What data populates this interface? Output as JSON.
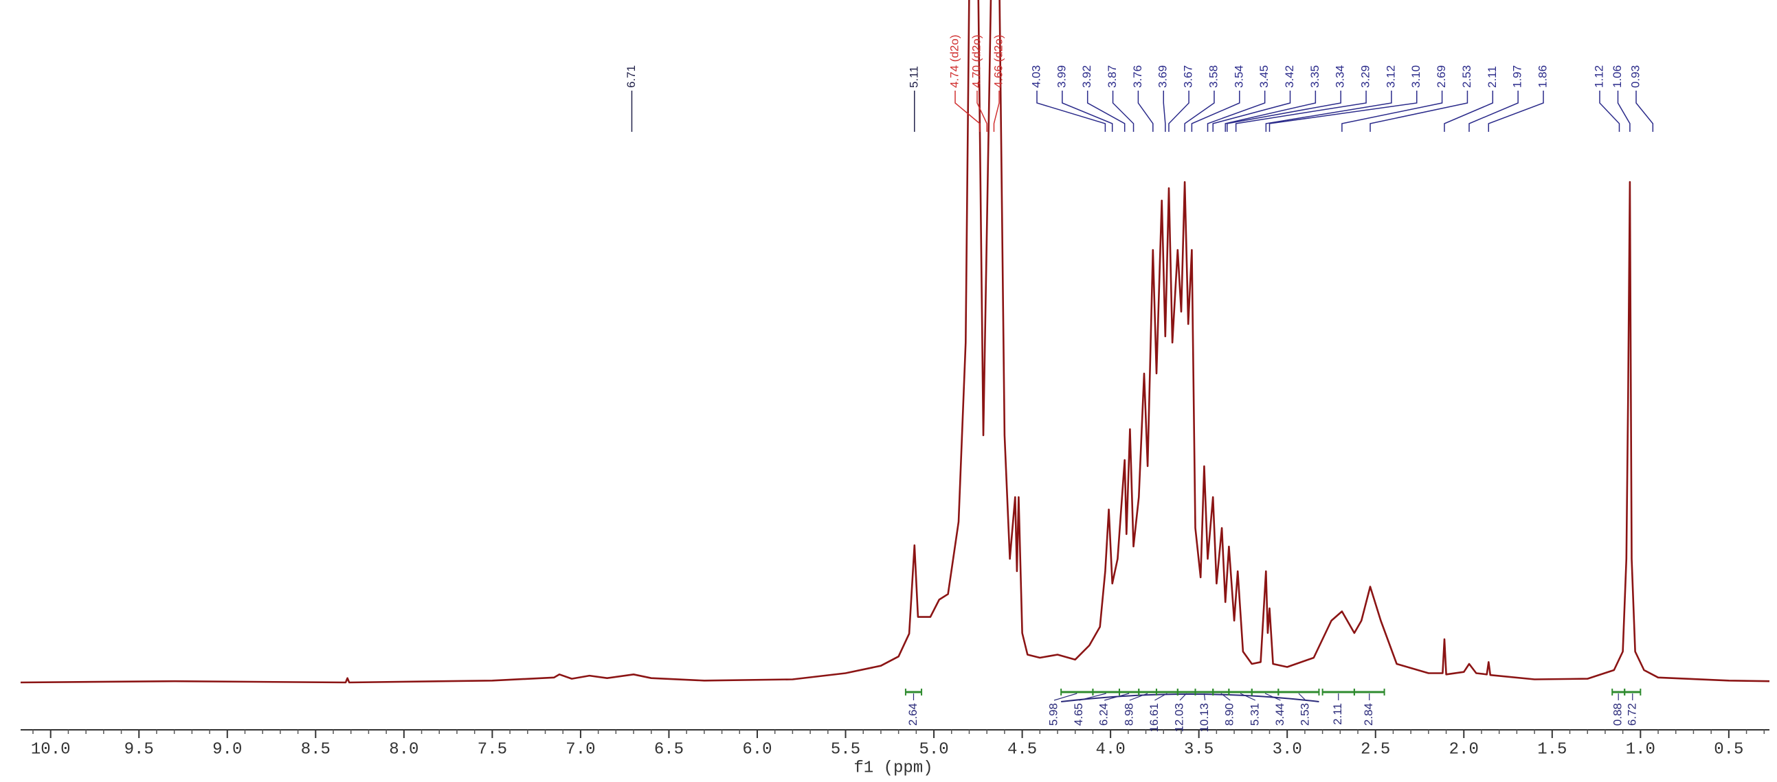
{
  "chart_data": {
    "type": "line",
    "x_label": "f1 (ppm)",
    "color": "#8b1414",
    "xlim": [
      10.17,
      0.27
    ],
    "ylim": [
      0,
      100
    ],
    "xticks": [
      {
        "value": 10,
        "label": "10.0"
      },
      9.5,
      {
        "value": 9,
        "label": "9.0"
      },
      8.5,
      {
        "value": 8,
        "label": "8.0"
      },
      7.5,
      {
        "value": 7,
        "label": "7.0"
      },
      6.5,
      {
        "value": 6,
        "label": "6.0"
      },
      5.5,
      {
        "value": 5,
        "label": "5.0"
      },
      4.5,
      {
        "value": 4,
        "label": "4.0"
      },
      3.5,
      {
        "value": 3,
        "label": "3.0"
      },
      2.5,
      {
        "value": 2,
        "label": "2.0"
      },
      1.5,
      {
        "value": 1,
        "label": "1.0"
      },
      0.5
    ],
    "xminorticks": [
      10.1,
      9.9,
      9.8,
      9.7,
      9.6,
      9.4,
      9.3,
      9.2,
      9.1,
      8.9,
      8.8,
      8.7,
      8.6,
      8.4,
      8.3,
      8.2,
      8.1,
      7.9,
      7.8,
      7.7,
      7.6,
      7.4,
      7.3,
      7.2,
      7.1,
      6.9,
      6.8,
      6.7,
      6.6,
      6.4,
      6.3,
      6.2,
      6.1,
      5.9,
      5.8,
      5.7,
      5.6,
      5.4,
      5.3,
      5.2,
      5.1,
      4.9,
      4.8,
      4.7,
      4.6,
      4.4,
      4.3,
      4.2,
      4.1,
      3.9,
      3.8,
      3.7,
      3.6,
      3.4,
      3.3,
      3.2,
      3.1,
      2.9,
      2.8,
      2.7,
      2.6,
      2.4,
      2.3,
      2.2,
      2.1,
      1.9,
      1.8,
      1.7,
      1.6,
      1.4,
      1.3,
      1.2,
      1.1,
      0.9,
      0.8,
      0.7,
      0.6,
      0.4,
      0.3
    ],
    "x": [
      10.17,
      9.3,
      8.33,
      8.32,
      8.31,
      7.5,
      7.15,
      7.12,
      7.05,
      6.95,
      6.85,
      6.7,
      6.6,
      6.3,
      5.8,
      5.5,
      5.3,
      5.2,
      5.14,
      5.11,
      5.09,
      5.02,
      4.97,
      4.92,
      4.86,
      4.82,
      4.79,
      4.76,
      4.72,
      4.66,
      4.64,
      4.6,
      4.57,
      4.54,
      4.53,
      4.52,
      4.5,
      4.47,
      4.4,
      4.3,
      4.2,
      4.12,
      4.06,
      4.03,
      4.01,
      3.99,
      3.96,
      3.92,
      3.91,
      3.89,
      3.87,
      3.84,
      3.81,
      3.79,
      3.76,
      3.74,
      3.71,
      3.69,
      3.67,
      3.65,
      3.62,
      3.6,
      3.58,
      3.56,
      3.54,
      3.52,
      3.49,
      3.47,
      3.45,
      3.42,
      3.4,
      3.37,
      3.35,
      3.33,
      3.3,
      3.28,
      3.25,
      3.2,
      3.15,
      3.12,
      3.11,
      3.1,
      3.08,
      3.0,
      2.85,
      2.75,
      2.69,
      2.62,
      2.58,
      2.53,
      2.47,
      2.38,
      2.2,
      2.12,
      2.11,
      2.1,
      2.0,
      1.97,
      1.93,
      1.87,
      1.86,
      1.85,
      1.6,
      1.3,
      1.15,
      1.1,
      1.08,
      1.07,
      1.06,
      1.05,
      1.03,
      0.98,
      0.9,
      0.5,
      0.27
    ],
    "values": [
      0,
      0.2,
      0,
      0.7,
      0,
      0.3,
      0.8,
      1.3,
      0.6,
      1.1,
      0.7,
      1.3,
      0.7,
      0.3,
      0.5,
      1.5,
      2.7,
      4.2,
      7.9,
      22.2,
      10.6,
      10.6,
      13.4,
      14.3,
      26,
      55,
      140,
      140,
      40,
      140,
      140,
      40,
      20,
      30,
      18,
      30,
      8,
      4.5,
      4,
      4.5,
      3.7,
      6,
      9,
      18,
      28,
      16,
      20,
      36,
      24,
      41,
      22,
      30,
      50,
      35,
      70,
      50,
      78,
      56,
      80,
      55,
      70,
      60,
      81,
      58,
      70,
      25,
      17,
      35,
      20,
      30,
      16,
      25,
      13,
      22,
      10,
      18,
      5,
      3,
      3.3,
      18,
      8,
      12,
      3,
      2.5,
      4,
      10,
      11.5,
      8,
      10,
      15.5,
      10,
      3,
      1.5,
      1.5,
      7,
      1.3,
      1.7,
      3,
      1.5,
      1.3,
      3.3,
      1.2,
      0.5,
      0.6,
      2,
      5,
      20,
      46,
      81,
      20,
      5,
      2,
      0.8,
      0.3,
      0.2
    ],
    "peak_groups": [
      {
        "color": "#22224a",
        "peaks": [
          {
            "value": 6.71
          }
        ]
      },
      {
        "color": "#22224a",
        "peaks": [
          {
            "value": 5.11
          }
        ]
      },
      {
        "color": "#d03030",
        "peaks": [
          {
            "value": 4.74,
            "label": "4.74 (d2o)"
          },
          {
            "value": 4.7,
            "label": "4.70 (d2o)"
          },
          {
            "value": 4.66,
            "label": "4.66 (d2o)"
          }
        ]
      },
      {
        "color": "#2a2a8a",
        "peaks": [
          {
            "value": 4.03
          },
          {
            "value": 3.99
          },
          {
            "value": 3.92
          },
          {
            "value": 3.87
          },
          {
            "value": 3.76
          },
          {
            "value": 3.69
          },
          {
            "value": 3.67
          },
          {
            "value": 3.58
          },
          {
            "value": 3.54
          },
          {
            "value": 3.45
          },
          {
            "value": 3.42
          },
          {
            "value": 3.35
          },
          {
            "value": 3.34
          },
          {
            "value": 3.29
          },
          {
            "value": 3.12
          },
          {
            "value": 3.1,
            "label": "3.10"
          },
          {
            "value": 2.69
          },
          {
            "value": 2.53
          },
          {
            "value": 2.11
          },
          {
            "value": 1.97
          },
          {
            "value": 1.86
          }
        ]
      },
      {
        "color": "#2a2a8a",
        "peaks": [
          {
            "value": 1.12
          },
          {
            "value": 1.06
          },
          {
            "value": 0.93
          }
        ]
      }
    ],
    "integral_color": "#2e8b2e",
    "integral_groups": [
      [
        {
          "value": 2.64,
          "from": 5.16,
          "to": 5.07
        }
      ],
      [
        {
          "value": 5.98,
          "from": 4.28,
          "to": 4.1
        },
        {
          "value": 4.65,
          "from": 4.1,
          "to": 3.95
        },
        {
          "value": 6.24,
          "from": 3.95,
          "to": 3.84
        },
        {
          "value": 8.98,
          "from": 3.84,
          "to": 3.74
        },
        {
          "value": 16.61,
          "from": 3.74,
          "to": 3.62
        },
        {
          "value": 12.03,
          "from": 3.62,
          "to": 3.52
        },
        {
          "value": 10.13,
          "from": 3.52,
          "to": 3.42
        },
        {
          "value": 8.9,
          "label": "8.90",
          "from": 3.42,
          "to": 3.33
        },
        {
          "value": 5.31,
          "from": 3.33,
          "to": 3.2
        },
        {
          "value": 3.44,
          "from": 3.2,
          "to": 3.05
        },
        {
          "value": 2.53,
          "from": 3.05,
          "to": 2.82
        }
      ],
      [
        {
          "value": 2.11,
          "from": 2.8,
          "to": 2.62
        },
        {
          "value": 2.84,
          "from": 2.62,
          "to": 2.45
        }
      ],
      [
        {
          "value": 0.88,
          "from": 1.16,
          "to": 1.09
        },
        {
          "value": 6.72,
          "from": 1.09,
          "to": 1.0
        }
      ]
    ]
  }
}
